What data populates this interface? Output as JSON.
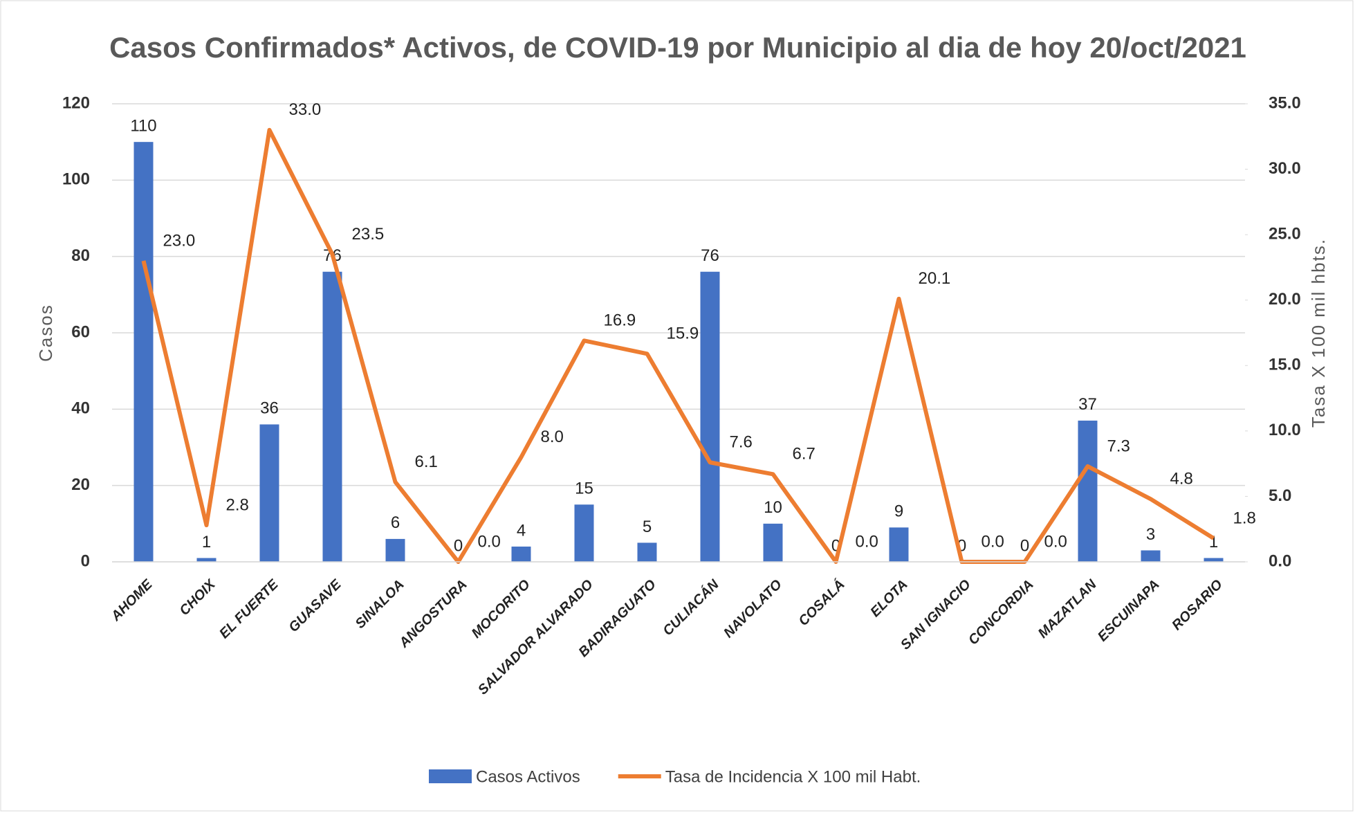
{
  "chart_data": {
    "type": "bar",
    "title": "Casos Confirmados* Activos, de COVID-19 por Municipio al dia de hoy 20/oct/2021",
    "y_label": "Casos",
    "y2_label": "Tasa X 100 mil hbts.",
    "categories": [
      "AHOME",
      "CHOIX",
      "EL FUERTE",
      "GUASAVE",
      "SINALOA",
      "ANGOSTURA",
      "MOCORITO",
      "SALVADOR ALVARADO",
      "BADIRAGUATO",
      "CULIACÁN",
      "NAVOLATO",
      "COSALÁ",
      "ELOTA",
      "SAN IGNACIO",
      "CONCORDIA",
      "MAZATLAN",
      "ESCUINAPA",
      "ROSARIO"
    ],
    "series": [
      {
        "name": "Casos Activos",
        "type": "bar",
        "color": "#4472c4",
        "values": [
          110,
          1,
          36,
          76,
          6,
          0,
          4,
          15,
          5,
          76,
          10,
          0,
          9,
          0,
          0,
          37,
          3,
          1
        ]
      },
      {
        "name": "Tasa de Incidencia X 100 mil Habt.",
        "type": "line",
        "axis": "y2",
        "color": "#ed7d31",
        "values": [
          23.0,
          2.8,
          33.0,
          23.5,
          6.1,
          0.0,
          8.0,
          16.9,
          15.9,
          7.6,
          6.7,
          0.0,
          20.1,
          0.0,
          0.0,
          7.3,
          4.8,
          1.8
        ],
        "value_labels": [
          "23.0",
          "2.8",
          "33.0",
          "23.5",
          "6.1",
          "0.0",
          "8.0",
          "16.9",
          "15.9",
          "7.6",
          "6.7",
          "0.0",
          "20.1",
          "0.0",
          "0.0",
          "7.3",
          "4.8",
          "1.8"
        ]
      }
    ],
    "ylim": [
      0,
      120
    ],
    "yticks": [
      0,
      20,
      40,
      60,
      80,
      100,
      120
    ],
    "y2lim": [
      0,
      35
    ],
    "y2ticks": [
      {
        "value": 0,
        "label": "0.0"
      },
      {
        "value": 5,
        "label": "5.0"
      },
      {
        "value": 10,
        "label": "10.0"
      },
      {
        "value": 15,
        "label": "15.0"
      },
      {
        "value": 20,
        "label": "20.0"
      },
      {
        "value": 25,
        "label": "25.0"
      },
      {
        "value": 30,
        "label": "30.0"
      },
      {
        "value": 35,
        "label": "35.0"
      }
    ],
    "grid": true,
    "legend": "bottom"
  }
}
